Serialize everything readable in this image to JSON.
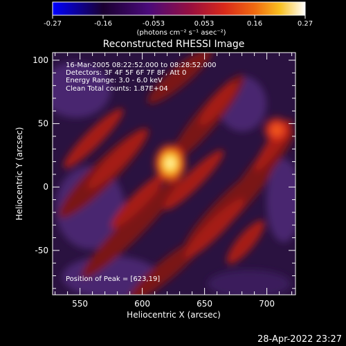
{
  "colorbar": {
    "ticks": [
      "-0.27",
      "-0.16",
      "-0.053",
      "0.053",
      "0.16",
      "0.27"
    ],
    "units": "(photons cm⁻² s⁻¹ asec⁻²)",
    "colors": [
      "#0000ff",
      "#1a0030",
      "#4a0a7a",
      "#9a0f3e",
      "#d8291a",
      "#f06a10",
      "#f8c020",
      "#ffffff"
    ]
  },
  "title": "Reconstructed RHESSI Image",
  "info": {
    "line1": "16-Mar-2005 08:22:52.000 to 08:28:52.000",
    "line2": "Detectors: 3F 4F 5F 6F 7F 8F, Att 0",
    "line3": "Energy Range: 3.0 - 6.0 keV",
    "line4": "Clean     Total counts: 1.87E+04",
    "peak": "Position of Peak = [623,19]"
  },
  "axes": {
    "xlabel": "Heliocentric X (arcsec)",
    "ylabel": "Heliocentric Y (arcsec)",
    "xticks": [
      "550",
      "600",
      "650",
      "700"
    ],
    "yticks": [
      "100",
      "50",
      "0",
      "-50"
    ]
  },
  "timestamp": "28-Apr-2022 23:27"
}
